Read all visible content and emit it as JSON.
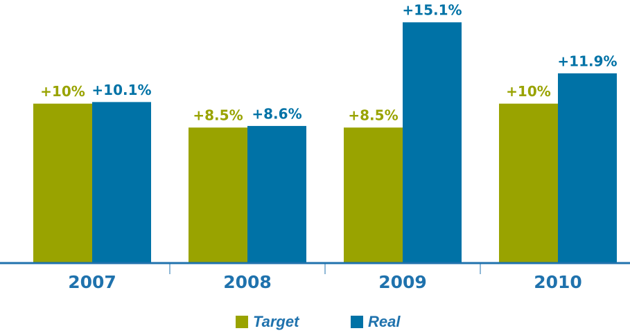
{
  "chart_data": {
    "type": "bar",
    "categories": [
      "2007",
      "2008",
      "2009",
      "2010"
    ],
    "series": [
      {
        "name": "Target",
        "color": "#99a300",
        "values": [
          10,
          8.5,
          8.5,
          10
        ],
        "value_labels": [
          "+10%",
          "+8.5%",
          "+8.5%",
          "+10%"
        ]
      },
      {
        "name": "Real",
        "color": "#0072a6",
        "values": [
          10.1,
          8.6,
          15.1,
          11.9
        ],
        "value_labels": [
          "+10.1%",
          "+8.6%",
          "+15.1%",
          "+11.9%"
        ]
      }
    ],
    "ylim": [
      0,
      16.5
    ],
    "grid": false,
    "legend": "bottom"
  }
}
